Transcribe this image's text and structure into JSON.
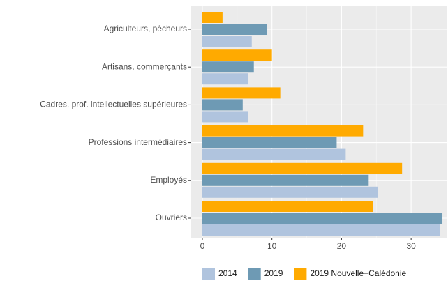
{
  "chart_data": {
    "type": "bar",
    "orientation": "horizontal",
    "categories": [
      "Agriculteurs, pêcheurs",
      "Artisans, commerçants",
      "Cadres, prof. intellectuelles supérieures",
      "Professions intermédiaires",
      "Employés",
      "Ouvriers"
    ],
    "series": [
      {
        "name": "2014",
        "color": "#b0c4de",
        "values": [
          7.1,
          6.6,
          6.6,
          20.6,
          25.2,
          34.1
        ]
      },
      {
        "name": "2019",
        "color": "#6e9ab4",
        "values": [
          9.3,
          7.4,
          5.8,
          19.3,
          23.9,
          34.5
        ]
      },
      {
        "name": "2019 Nouvelle−Calédonie",
        "color": "#ffaa00",
        "values": [
          2.9,
          10.0,
          11.2,
          23.1,
          28.7,
          24.5
        ]
      }
    ],
    "xlim": [
      -1.7,
      35.1
    ],
    "xticks": [
      0,
      10,
      20,
      30
    ],
    "grid": true,
    "legend": "bottom"
  }
}
